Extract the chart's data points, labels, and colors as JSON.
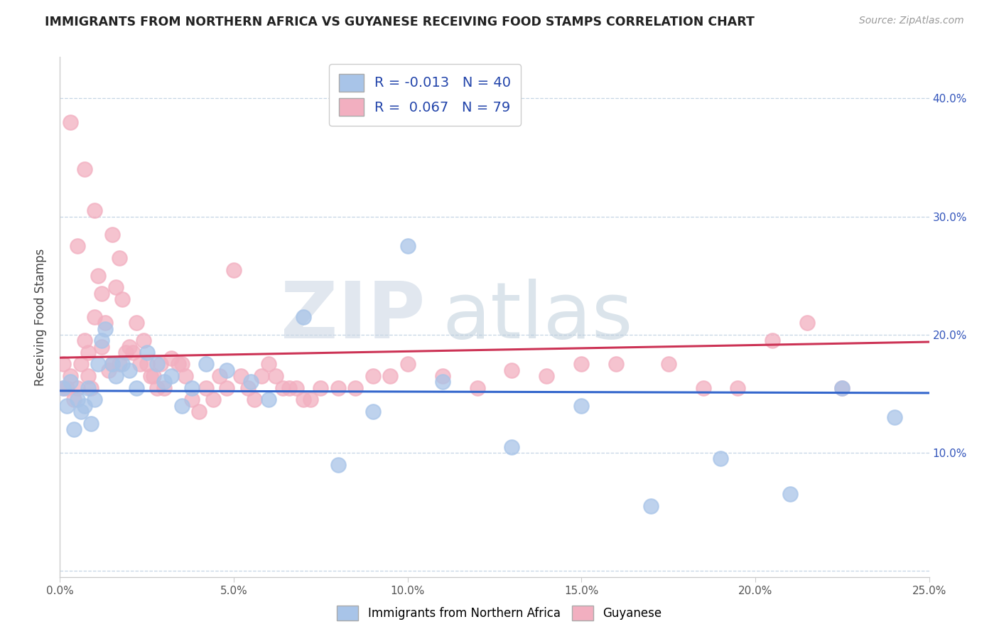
{
  "title": "IMMIGRANTS FROM NORTHERN AFRICA VS GUYANESE RECEIVING FOOD STAMPS CORRELATION CHART",
  "source": "Source: ZipAtlas.com",
  "ylabel": "Receiving Food Stamps",
  "xlim": [
    0.0,
    0.25
  ],
  "ylim": [
    -0.005,
    0.435
  ],
  "xticks": [
    0.0,
    0.05,
    0.1,
    0.15,
    0.2,
    0.25
  ],
  "yticks": [
    0.0,
    0.1,
    0.2,
    0.3,
    0.4
  ],
  "xticklabels": [
    "0.0%",
    "5.0%",
    "10.0%",
    "15.0%",
    "20.0%",
    "25.0%"
  ],
  "yticklabels_right": [
    "",
    "10.0%",
    "20.0%",
    "30.0%",
    "40.0%"
  ],
  "blue_R": -0.013,
  "blue_N": 40,
  "pink_R": 0.067,
  "pink_N": 79,
  "blue_color": "#a8c4e8",
  "pink_color": "#f2afc0",
  "blue_line_color": "#3366cc",
  "pink_line_color": "#cc3355",
  "legend_label_blue": "Immigrants from Northern Africa",
  "legend_label_pink": "Guyanese",
  "blue_x": [
    0.001,
    0.002,
    0.003,
    0.004,
    0.005,
    0.006,
    0.007,
    0.008,
    0.009,
    0.01,
    0.011,
    0.012,
    0.013,
    0.015,
    0.016,
    0.018,
    0.02,
    0.022,
    0.025,
    0.028,
    0.03,
    0.032,
    0.035,
    0.038,
    0.042,
    0.048,
    0.055,
    0.06,
    0.07,
    0.08,
    0.09,
    0.1,
    0.11,
    0.13,
    0.15,
    0.17,
    0.19,
    0.21,
    0.225,
    0.24
  ],
  "blue_y": [
    0.155,
    0.14,
    0.16,
    0.12,
    0.145,
    0.135,
    0.14,
    0.155,
    0.125,
    0.145,
    0.175,
    0.195,
    0.205,
    0.175,
    0.165,
    0.175,
    0.17,
    0.155,
    0.185,
    0.175,
    0.16,
    0.165,
    0.14,
    0.155,
    0.175,
    0.17,
    0.16,
    0.145,
    0.215,
    0.09,
    0.135,
    0.275,
    0.16,
    0.105,
    0.14,
    0.055,
    0.095,
    0.065,
    0.155,
    0.13
  ],
  "pink_x": [
    0.001,
    0.001,
    0.002,
    0.003,
    0.003,
    0.004,
    0.005,
    0.005,
    0.006,
    0.007,
    0.007,
    0.008,
    0.008,
    0.009,
    0.01,
    0.01,
    0.011,
    0.012,
    0.012,
    0.013,
    0.014,
    0.015,
    0.015,
    0.016,
    0.017,
    0.017,
    0.018,
    0.019,
    0.02,
    0.021,
    0.022,
    0.023,
    0.024,
    0.025,
    0.026,
    0.027,
    0.028,
    0.029,
    0.03,
    0.032,
    0.034,
    0.035,
    0.036,
    0.038,
    0.04,
    0.042,
    0.044,
    0.046,
    0.048,
    0.05,
    0.052,
    0.054,
    0.056,
    0.058,
    0.06,
    0.062,
    0.064,
    0.066,
    0.068,
    0.07,
    0.072,
    0.075,
    0.08,
    0.085,
    0.09,
    0.095,
    0.1,
    0.11,
    0.12,
    0.13,
    0.14,
    0.15,
    0.16,
    0.175,
    0.185,
    0.195,
    0.205,
    0.215,
    0.225
  ],
  "pink_y": [
    0.155,
    0.175,
    0.155,
    0.38,
    0.165,
    0.145,
    0.275,
    0.155,
    0.175,
    0.34,
    0.195,
    0.185,
    0.165,
    0.155,
    0.305,
    0.215,
    0.25,
    0.235,
    0.19,
    0.21,
    0.17,
    0.285,
    0.175,
    0.24,
    0.265,
    0.175,
    0.23,
    0.185,
    0.19,
    0.185,
    0.21,
    0.175,
    0.195,
    0.175,
    0.165,
    0.165,
    0.155,
    0.175,
    0.155,
    0.18,
    0.175,
    0.175,
    0.165,
    0.145,
    0.135,
    0.155,
    0.145,
    0.165,
    0.155,
    0.255,
    0.165,
    0.155,
    0.145,
    0.165,
    0.175,
    0.165,
    0.155,
    0.155,
    0.155,
    0.145,
    0.145,
    0.155,
    0.155,
    0.155,
    0.165,
    0.165,
    0.175,
    0.165,
    0.155,
    0.17,
    0.165,
    0.175,
    0.175,
    0.175,
    0.155,
    0.155,
    0.195,
    0.21,
    0.155
  ]
}
